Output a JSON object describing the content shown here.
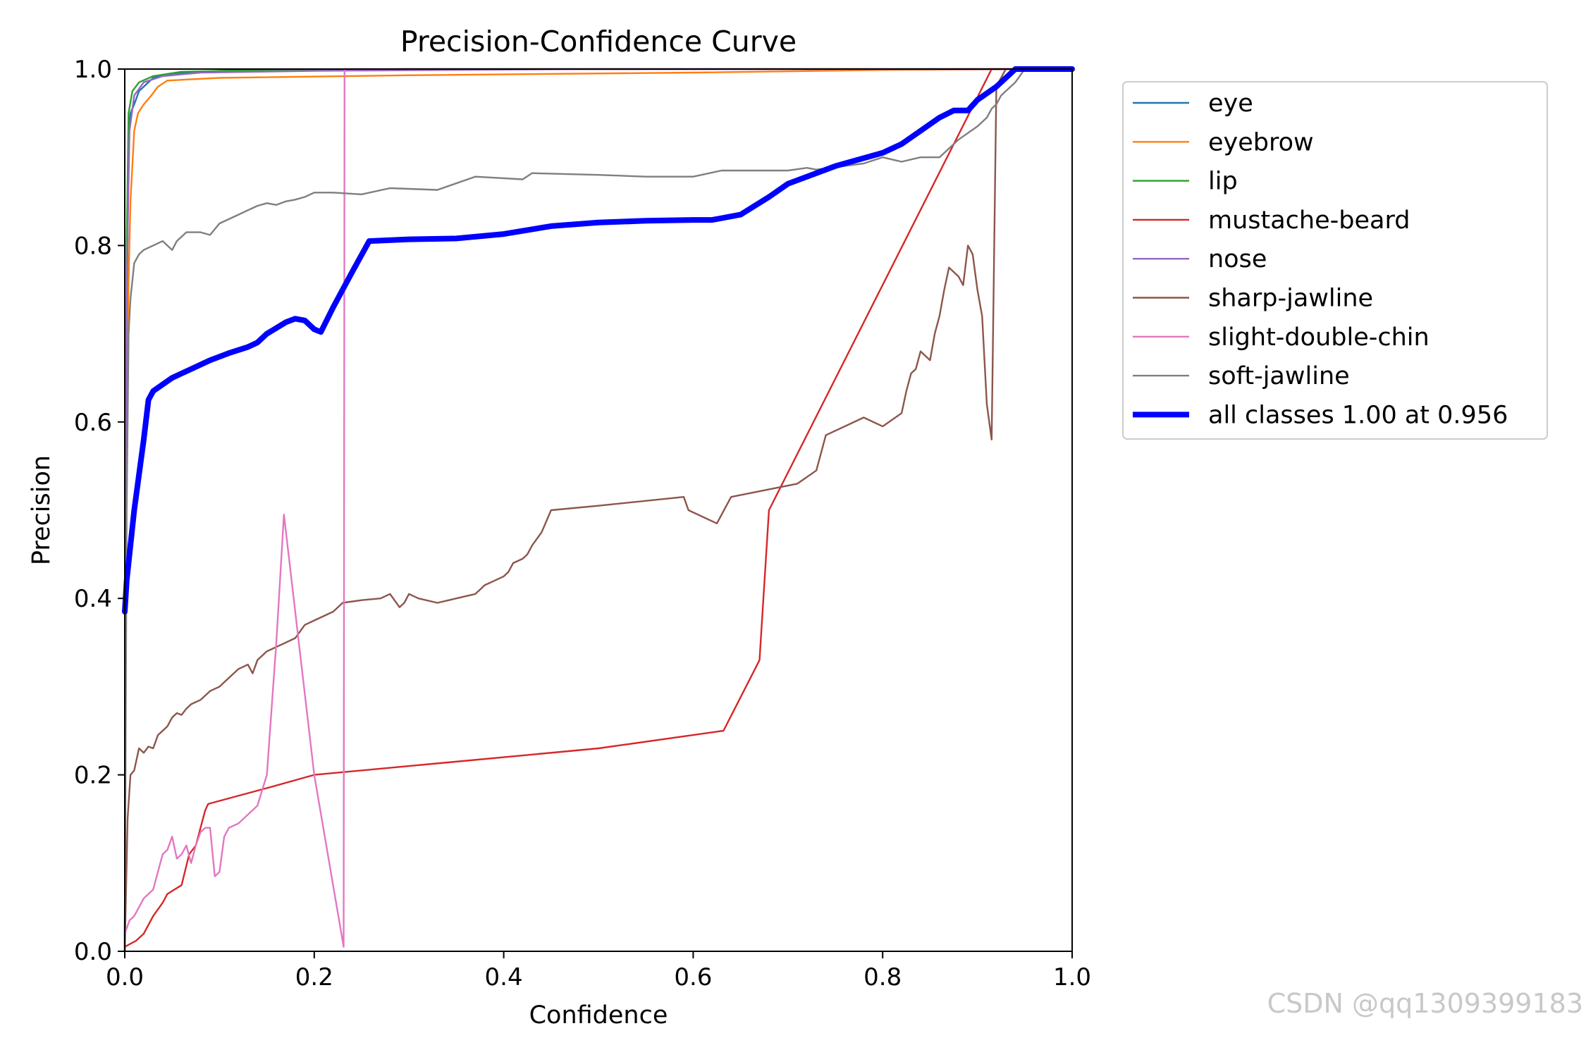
{
  "chart_data": {
    "type": "line",
    "title": "Precision-Confidence Curve",
    "xlabel": "Confidence",
    "ylabel": "Precision",
    "xlim": [
      0,
      1
    ],
    "ylim": [
      0,
      1
    ],
    "x_ticks": [
      "0.0",
      "0.2",
      "0.4",
      "0.6",
      "0.8",
      "1.0"
    ],
    "y_ticks": [
      "0.0",
      "0.2",
      "0.4",
      "0.6",
      "0.8",
      "1.0"
    ],
    "legend_position": "outside-right",
    "series": [
      {
        "name": "eye",
        "color": "#1f77b4",
        "thick": false,
        "points": [
          [
            0,
            0.0
          ],
          [
            0.002,
            0.7
          ],
          [
            0.004,
            0.92
          ],
          [
            0.006,
            0.95
          ],
          [
            0.01,
            0.96
          ],
          [
            0.015,
            0.975
          ],
          [
            0.02,
            0.98
          ],
          [
            0.03,
            0.99
          ],
          [
            0.05,
            0.995
          ],
          [
            0.1,
            0.998
          ],
          [
            0.3,
            1.0
          ],
          [
            1.0,
            1.0
          ]
        ]
      },
      {
        "name": "eyebrow",
        "color": "#ff7f0e",
        "thick": false,
        "points": [
          [
            0,
            0.0
          ],
          [
            0.002,
            0.6
          ],
          [
            0.004,
            0.76
          ],
          [
            0.006,
            0.85
          ],
          [
            0.01,
            0.93
          ],
          [
            0.014,
            0.95
          ],
          [
            0.02,
            0.96
          ],
          [
            0.028,
            0.97
          ],
          [
            0.035,
            0.98
          ],
          [
            0.045,
            0.987
          ],
          [
            0.1,
            0.99
          ],
          [
            0.3,
            0.993
          ],
          [
            0.6,
            0.996
          ],
          [
            0.8,
            0.999
          ],
          [
            1.0,
            1.0
          ]
        ]
      },
      {
        "name": "lip",
        "color": "#2ca02c",
        "thick": false,
        "points": [
          [
            0,
            0.0
          ],
          [
            0.002,
            0.8
          ],
          [
            0.004,
            0.95
          ],
          [
            0.008,
            0.975
          ],
          [
            0.015,
            0.985
          ],
          [
            0.03,
            0.992
          ],
          [
            0.06,
            0.997
          ],
          [
            0.15,
            0.999
          ],
          [
            0.3,
            1.0
          ],
          [
            1.0,
            1.0
          ]
        ]
      },
      {
        "name": "mustache-beard",
        "color": "#d62728",
        "thick": false,
        "points": [
          [
            0,
            0.005
          ],
          [
            0.005,
            0.008
          ],
          [
            0.012,
            0.012
          ],
          [
            0.02,
            0.02
          ],
          [
            0.03,
            0.04
          ],
          [
            0.04,
            0.055
          ],
          [
            0.045,
            0.065
          ],
          [
            0.06,
            0.075
          ],
          [
            0.068,
            0.11
          ],
          [
            0.075,
            0.12
          ],
          [
            0.085,
            0.16
          ],
          [
            0.088,
            0.167
          ],
          [
            0.15,
            0.185
          ],
          [
            0.2,
            0.2
          ],
          [
            0.3,
            0.21
          ],
          [
            0.5,
            0.23
          ],
          [
            0.632,
            0.25
          ],
          [
            0.67,
            0.33
          ],
          [
            0.68,
            0.5
          ],
          [
            0.915,
            1.0
          ],
          [
            1.0,
            1.0
          ]
        ]
      },
      {
        "name": "nose",
        "color": "#9467bd",
        "thick": false,
        "points": [
          [
            0,
            0.0
          ],
          [
            0.002,
            0.75
          ],
          [
            0.005,
            0.93
          ],
          [
            0.01,
            0.97
          ],
          [
            0.02,
            0.985
          ],
          [
            0.04,
            0.992
          ],
          [
            0.08,
            0.996
          ],
          [
            0.2,
            0.998
          ],
          [
            0.5,
            1.0
          ],
          [
            1.0,
            1.0
          ]
        ]
      },
      {
        "name": "sharp-jawline",
        "color": "#8c564b",
        "thick": false,
        "points": [
          [
            0,
            0.0
          ],
          [
            0.003,
            0.15
          ],
          [
            0.006,
            0.2
          ],
          [
            0.01,
            0.205
          ],
          [
            0.015,
            0.23
          ],
          [
            0.02,
            0.225
          ],
          [
            0.025,
            0.232
          ],
          [
            0.03,
            0.23
          ],
          [
            0.035,
            0.245
          ],
          [
            0.04,
            0.25
          ],
          [
            0.045,
            0.255
          ],
          [
            0.05,
            0.265
          ],
          [
            0.055,
            0.27
          ],
          [
            0.06,
            0.268
          ],
          [
            0.065,
            0.275
          ],
          [
            0.07,
            0.28
          ],
          [
            0.08,
            0.285
          ],
          [
            0.09,
            0.295
          ],
          [
            0.1,
            0.3
          ],
          [
            0.11,
            0.31
          ],
          [
            0.12,
            0.32
          ],
          [
            0.13,
            0.325
          ],
          [
            0.135,
            0.315
          ],
          [
            0.14,
            0.33
          ],
          [
            0.15,
            0.34
          ],
          [
            0.16,
            0.345
          ],
          [
            0.17,
            0.35
          ],
          [
            0.18,
            0.355
          ],
          [
            0.19,
            0.37
          ],
          [
            0.2,
            0.375
          ],
          [
            0.22,
            0.385
          ],
          [
            0.23,
            0.395
          ],
          [
            0.25,
            0.398
          ],
          [
            0.27,
            0.4
          ],
          [
            0.28,
            0.405
          ],
          [
            0.29,
            0.39
          ],
          [
            0.295,
            0.395
          ],
          [
            0.3,
            0.405
          ],
          [
            0.31,
            0.4
          ],
          [
            0.33,
            0.395
          ],
          [
            0.35,
            0.4
          ],
          [
            0.37,
            0.405
          ],
          [
            0.375,
            0.41
          ],
          [
            0.38,
            0.415
          ],
          [
            0.39,
            0.42
          ],
          [
            0.4,
            0.425
          ],
          [
            0.405,
            0.43
          ],
          [
            0.41,
            0.44
          ],
          [
            0.42,
            0.445
          ],
          [
            0.425,
            0.45
          ],
          [
            0.43,
            0.46
          ],
          [
            0.44,
            0.475
          ],
          [
            0.45,
            0.5
          ],
          [
            0.5,
            0.505
          ],
          [
            0.59,
            0.515
          ],
          [
            0.595,
            0.5
          ],
          [
            0.625,
            0.485
          ],
          [
            0.64,
            0.515
          ],
          [
            0.71,
            0.53
          ],
          [
            0.73,
            0.545
          ],
          [
            0.74,
            0.585
          ],
          [
            0.78,
            0.605
          ],
          [
            0.8,
            0.595
          ],
          [
            0.82,
            0.61
          ],
          [
            0.825,
            0.635
          ],
          [
            0.83,
            0.655
          ],
          [
            0.835,
            0.66
          ],
          [
            0.84,
            0.68
          ],
          [
            0.85,
            0.67
          ],
          [
            0.855,
            0.7
          ],
          [
            0.86,
            0.72
          ],
          [
            0.865,
            0.75
          ],
          [
            0.87,
            0.775
          ],
          [
            0.88,
            0.765
          ],
          [
            0.885,
            0.755
          ],
          [
            0.89,
            0.8
          ],
          [
            0.895,
            0.79
          ],
          [
            0.9,
            0.75
          ],
          [
            0.905,
            0.72
          ],
          [
            0.91,
            0.62
          ],
          [
            0.915,
            0.58
          ],
          [
            0.92,
            0.98
          ],
          [
            0.93,
            1.0
          ],
          [
            1.0,
            1.0
          ]
        ]
      },
      {
        "name": "slight-double-chin",
        "color": "#e377c2",
        "thick": false,
        "points": [
          [
            0,
            0.02
          ],
          [
            0.005,
            0.035
          ],
          [
            0.01,
            0.04
          ],
          [
            0.015,
            0.05
          ],
          [
            0.02,
            0.06
          ],
          [
            0.025,
            0.065
          ],
          [
            0.03,
            0.07
          ],
          [
            0.035,
            0.09
          ],
          [
            0.04,
            0.11
          ],
          [
            0.045,
            0.115
          ],
          [
            0.05,
            0.13
          ],
          [
            0.055,
            0.105
          ],
          [
            0.06,
            0.11
          ],
          [
            0.065,
            0.12
          ],
          [
            0.07,
            0.1
          ],
          [
            0.075,
            0.12
          ],
          [
            0.08,
            0.135
          ],
          [
            0.085,
            0.14
          ],
          [
            0.09,
            0.14
          ],
          [
            0.095,
            0.085
          ],
          [
            0.1,
            0.09
          ],
          [
            0.105,
            0.13
          ],
          [
            0.11,
            0.14
          ],
          [
            0.12,
            0.145
          ],
          [
            0.14,
            0.165
          ],
          [
            0.15,
            0.2
          ],
          [
            0.16,
            0.35
          ],
          [
            0.168,
            0.495
          ],
          [
            0.2,
            0.2
          ],
          [
            0.231,
            0.005
          ],
          [
            0.232,
            1.0
          ],
          [
            1.0,
            1.0
          ]
        ]
      },
      {
        "name": "soft-jawline",
        "color": "#7f7f7f",
        "thick": false,
        "points": [
          [
            0,
            0.0
          ],
          [
            0.002,
            0.5
          ],
          [
            0.004,
            0.7
          ],
          [
            0.006,
            0.74
          ],
          [
            0.008,
            0.76
          ],
          [
            0.01,
            0.78
          ],
          [
            0.015,
            0.79
          ],
          [
            0.02,
            0.795
          ],
          [
            0.03,
            0.8
          ],
          [
            0.04,
            0.805
          ],
          [
            0.05,
            0.795
          ],
          [
            0.055,
            0.805
          ],
          [
            0.06,
            0.81
          ],
          [
            0.065,
            0.815
          ],
          [
            0.08,
            0.815
          ],
          [
            0.09,
            0.812
          ],
          [
            0.1,
            0.825
          ],
          [
            0.12,
            0.835
          ],
          [
            0.13,
            0.84
          ],
          [
            0.14,
            0.845
          ],
          [
            0.15,
            0.848
          ],
          [
            0.16,
            0.846
          ],
          [
            0.17,
            0.85
          ],
          [
            0.18,
            0.852
          ],
          [
            0.19,
            0.855
          ],
          [
            0.2,
            0.86
          ],
          [
            0.22,
            0.86
          ],
          [
            0.25,
            0.858
          ],
          [
            0.28,
            0.865
          ],
          [
            0.33,
            0.863
          ],
          [
            0.37,
            0.878
          ],
          [
            0.42,
            0.875
          ],
          [
            0.43,
            0.882
          ],
          [
            0.5,
            0.88
          ],
          [
            0.55,
            0.878
          ],
          [
            0.6,
            0.878
          ],
          [
            0.63,
            0.885
          ],
          [
            0.7,
            0.885
          ],
          [
            0.72,
            0.888
          ],
          [
            0.73,
            0.886
          ],
          [
            0.78,
            0.893
          ],
          [
            0.8,
            0.9
          ],
          [
            0.82,
            0.895
          ],
          [
            0.84,
            0.9
          ],
          [
            0.86,
            0.9
          ],
          [
            0.87,
            0.91
          ],
          [
            0.88,
            0.92
          ],
          [
            0.9,
            0.935
          ],
          [
            0.91,
            0.945
          ],
          [
            0.915,
            0.955
          ],
          [
            0.92,
            0.96
          ],
          [
            0.925,
            0.97
          ],
          [
            0.93,
            0.975
          ],
          [
            0.94,
            0.985
          ],
          [
            0.95,
            1.0
          ],
          [
            1.0,
            1.0
          ]
        ]
      },
      {
        "name": "all classes 1.00 at 0.956",
        "color": "#0000ff",
        "thick": true,
        "points": [
          [
            0,
            0.385
          ],
          [
            0.002,
            0.42
          ],
          [
            0.01,
            0.5
          ],
          [
            0.02,
            0.58
          ],
          [
            0.025,
            0.625
          ],
          [
            0.03,
            0.635
          ],
          [
            0.05,
            0.65
          ],
          [
            0.07,
            0.66
          ],
          [
            0.09,
            0.67
          ],
          [
            0.11,
            0.678
          ],
          [
            0.13,
            0.685
          ],
          [
            0.14,
            0.69
          ],
          [
            0.15,
            0.7
          ],
          [
            0.17,
            0.713
          ],
          [
            0.18,
            0.717
          ],
          [
            0.19,
            0.715
          ],
          [
            0.2,
            0.705
          ],
          [
            0.207,
            0.702
          ],
          [
            0.22,
            0.73
          ],
          [
            0.24,
            0.77
          ],
          [
            0.258,
            0.805
          ],
          [
            0.3,
            0.807
          ],
          [
            0.35,
            0.808
          ],
          [
            0.4,
            0.813
          ],
          [
            0.45,
            0.822
          ],
          [
            0.5,
            0.826
          ],
          [
            0.55,
            0.828
          ],
          [
            0.6,
            0.829
          ],
          [
            0.62,
            0.829
          ],
          [
            0.65,
            0.835
          ],
          [
            0.68,
            0.855
          ],
          [
            0.7,
            0.87
          ],
          [
            0.75,
            0.89
          ],
          [
            0.8,
            0.905
          ],
          [
            0.82,
            0.915
          ],
          [
            0.84,
            0.93
          ],
          [
            0.86,
            0.945
          ],
          [
            0.875,
            0.953
          ],
          [
            0.89,
            0.953
          ],
          [
            0.9,
            0.965
          ],
          [
            0.92,
            0.98
          ],
          [
            0.94,
            1.0
          ],
          [
            1.0,
            1.0
          ]
        ]
      }
    ]
  },
  "watermark": "CSDN @qq1309399183"
}
